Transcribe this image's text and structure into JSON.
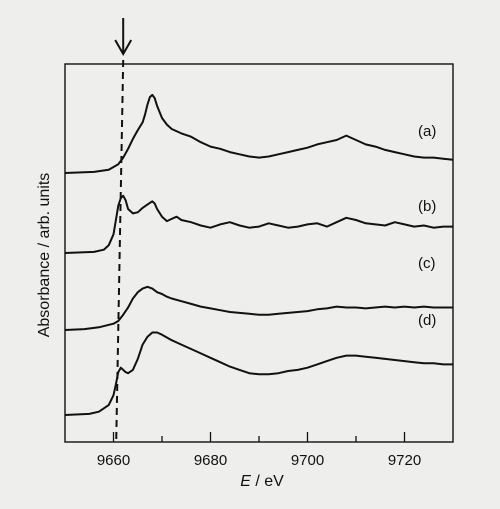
{
  "chart_data": {
    "type": "line",
    "xlabel_italic": "E",
    "xlabel_rest": " / eV",
    "ylabel": "Absorbance / arb. units",
    "xlim": [
      9650,
      9730
    ],
    "x_ticks": [
      9660,
      9680,
      9700,
      9720
    ],
    "marker_energy": 9662,
    "series": [
      {
        "name": "(a)",
        "points": [
          [
            9650,
            0.16
          ],
          [
            9656,
            0.17
          ],
          [
            9659,
            0.19
          ],
          [
            9661,
            0.24
          ],
          [
            9662,
            0.3
          ],
          [
            9663,
            0.38
          ],
          [
            9664,
            0.47
          ],
          [
            9665,
            0.55
          ],
          [
            9666,
            0.62
          ],
          [
            9666.5,
            0.69
          ],
          [
            9667,
            0.78
          ],
          [
            9667.5,
            0.85
          ],
          [
            9668,
            0.87
          ],
          [
            9668.5,
            0.84
          ],
          [
            9669,
            0.77
          ],
          [
            9670,
            0.66
          ],
          [
            9671,
            0.6
          ],
          [
            9672,
            0.56
          ],
          [
            9674,
            0.52
          ],
          [
            9676,
            0.49
          ],
          [
            9678,
            0.44
          ],
          [
            9680,
            0.4
          ],
          [
            9682,
            0.38
          ],
          [
            9684,
            0.35
          ],
          [
            9686,
            0.33
          ],
          [
            9688,
            0.31
          ],
          [
            9690,
            0.3
          ],
          [
            9692,
            0.31
          ],
          [
            9694,
            0.33
          ],
          [
            9696,
            0.35
          ],
          [
            9698,
            0.37
          ],
          [
            9700,
            0.39
          ],
          [
            9702,
            0.42
          ],
          [
            9704,
            0.44
          ],
          [
            9706,
            0.46
          ],
          [
            9708,
            0.5
          ],
          [
            9710,
            0.46
          ],
          [
            9712,
            0.42
          ],
          [
            9714,
            0.4
          ],
          [
            9716,
            0.37
          ],
          [
            9718,
            0.35
          ],
          [
            9720,
            0.33
          ],
          [
            9722,
            0.31
          ],
          [
            9724,
            0.3
          ],
          [
            9726,
            0.3
          ],
          [
            9728,
            0.29
          ],
          [
            9730,
            0.28
          ]
        ]
      },
      {
        "name": "(b)",
        "points": [
          [
            9650,
            0.05
          ],
          [
            9656,
            0.06
          ],
          [
            9658,
            0.08
          ],
          [
            9659,
            0.12
          ],
          [
            9660,
            0.22
          ],
          [
            9660.5,
            0.35
          ],
          [
            9661,
            0.48
          ],
          [
            9661.5,
            0.55
          ],
          [
            9662,
            0.57
          ],
          [
            9662.5,
            0.53
          ],
          [
            9663,
            0.45
          ],
          [
            9664,
            0.41
          ],
          [
            9665,
            0.42
          ],
          [
            9666,
            0.46
          ],
          [
            9667,
            0.49
          ],
          [
            9668,
            0.52
          ],
          [
            9668.5,
            0.5
          ],
          [
            9669,
            0.45
          ],
          [
            9670,
            0.38
          ],
          [
            9671,
            0.34
          ],
          [
            9672,
            0.36
          ],
          [
            9673,
            0.38
          ],
          [
            9674,
            0.35
          ],
          [
            9676,
            0.33
          ],
          [
            9678,
            0.3
          ],
          [
            9680,
            0.28
          ],
          [
            9682,
            0.31
          ],
          [
            9684,
            0.33
          ],
          [
            9686,
            0.3
          ],
          [
            9688,
            0.28
          ],
          [
            9690,
            0.29
          ],
          [
            9692,
            0.32
          ],
          [
            9694,
            0.3
          ],
          [
            9696,
            0.28
          ],
          [
            9698,
            0.29
          ],
          [
            9700,
            0.31
          ],
          [
            9702,
            0.32
          ],
          [
            9704,
            0.29
          ],
          [
            9706,
            0.33
          ],
          [
            9708,
            0.37
          ],
          [
            9710,
            0.35
          ],
          [
            9712,
            0.32
          ],
          [
            9714,
            0.31
          ],
          [
            9716,
            0.3
          ],
          [
            9718,
            0.33
          ],
          [
            9720,
            0.31
          ],
          [
            9722,
            0.29
          ],
          [
            9724,
            0.3
          ],
          [
            9726,
            0.28
          ],
          [
            9728,
            0.29
          ],
          [
            9730,
            0.29
          ]
        ]
      },
      {
        "name": "(c)",
        "points": [
          [
            9650,
            0.2
          ],
          [
            9654,
            0.21
          ],
          [
            9657,
            0.23
          ],
          [
            9660,
            0.27
          ],
          [
            9661,
            0.3
          ],
          [
            9662,
            0.37
          ],
          [
            9663,
            0.45
          ],
          [
            9664,
            0.55
          ],
          [
            9665,
            0.62
          ],
          [
            9666,
            0.66
          ],
          [
            9667,
            0.68
          ],
          [
            9668,
            0.66
          ],
          [
            9669,
            0.62
          ],
          [
            9670,
            0.6
          ],
          [
            9671,
            0.57
          ],
          [
            9672,
            0.55
          ],
          [
            9674,
            0.52
          ],
          [
            9676,
            0.49
          ],
          [
            9678,
            0.46
          ],
          [
            9680,
            0.44
          ],
          [
            9682,
            0.42
          ],
          [
            9684,
            0.4
          ],
          [
            9686,
            0.39
          ],
          [
            9688,
            0.38
          ],
          [
            9690,
            0.37
          ],
          [
            9692,
            0.37
          ],
          [
            9694,
            0.38
          ],
          [
            9696,
            0.39
          ],
          [
            9698,
            0.4
          ],
          [
            9700,
            0.41
          ],
          [
            9702,
            0.43
          ],
          [
            9704,
            0.44
          ],
          [
            9706,
            0.46
          ],
          [
            9708,
            0.45
          ],
          [
            9710,
            0.45
          ],
          [
            9712,
            0.44
          ],
          [
            9714,
            0.45
          ],
          [
            9716,
            0.46
          ],
          [
            9718,
            0.45
          ],
          [
            9720,
            0.46
          ],
          [
            9722,
            0.45
          ],
          [
            9724,
            0.46
          ],
          [
            9726,
            0.45
          ],
          [
            9728,
            0.45
          ],
          [
            9730,
            0.45
          ]
        ]
      },
      {
        "name": "(d)",
        "points": [
          [
            9650,
            0.04
          ],
          [
            9655,
            0.05
          ],
          [
            9657,
            0.07
          ],
          [
            9659,
            0.13
          ],
          [
            9660,
            0.22
          ],
          [
            9660.5,
            0.32
          ],
          [
            9661,
            0.43
          ],
          [
            9661.5,
            0.47
          ],
          [
            9662,
            0.45
          ],
          [
            9662.5,
            0.43
          ],
          [
            9663,
            0.42
          ],
          [
            9664,
            0.45
          ],
          [
            9665,
            0.55
          ],
          [
            9666,
            0.68
          ],
          [
            9667,
            0.75
          ],
          [
            9668,
            0.79
          ],
          [
            9669,
            0.79
          ],
          [
            9670,
            0.77
          ],
          [
            9672,
            0.72
          ],
          [
            9674,
            0.68
          ],
          [
            9676,
            0.64
          ],
          [
            9678,
            0.6
          ],
          [
            9680,
            0.56
          ],
          [
            9682,
            0.52
          ],
          [
            9684,
            0.48
          ],
          [
            9686,
            0.45
          ],
          [
            9688,
            0.42
          ],
          [
            9690,
            0.41
          ],
          [
            9692,
            0.41
          ],
          [
            9694,
            0.42
          ],
          [
            9696,
            0.44
          ],
          [
            9698,
            0.45
          ],
          [
            9700,
            0.47
          ],
          [
            9702,
            0.5
          ],
          [
            9704,
            0.53
          ],
          [
            9706,
            0.56
          ],
          [
            9708,
            0.58
          ],
          [
            9710,
            0.58
          ],
          [
            9712,
            0.57
          ],
          [
            9714,
            0.56
          ],
          [
            9716,
            0.55
          ],
          [
            9718,
            0.54
          ],
          [
            9720,
            0.53
          ],
          [
            9722,
            0.52
          ],
          [
            9724,
            0.51
          ],
          [
            9726,
            0.51
          ],
          [
            9728,
            0.5
          ],
          [
            9730,
            0.5
          ]
        ]
      }
    ]
  }
}
